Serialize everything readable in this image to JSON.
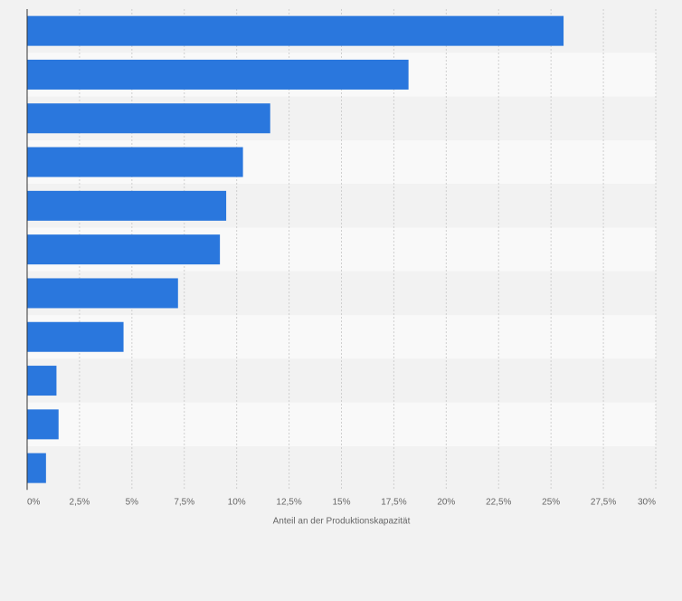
{
  "chart_data": {
    "type": "bar",
    "orientation": "horizontal",
    "categories": [
      "",
      "",
      "",
      "",
      "",
      "",
      "",
      "",
      "",
      "",
      ""
    ],
    "values": [
      25.6,
      18.2,
      11.6,
      10.3,
      9.5,
      9.2,
      7.2,
      4.6,
      1.4,
      1.5,
      0.9
    ],
    "xlabel": "Anteil an der Produktionskapazität",
    "xlim": [
      0,
      30
    ],
    "ticks": [
      0,
      2.5,
      5,
      7.5,
      10,
      12.5,
      15,
      17.5,
      20,
      22.5,
      25,
      27.5,
      30
    ],
    "tick_labels": [
      "0%",
      "2,5%",
      "5%",
      "7,5%",
      "10%",
      "12,5%",
      "15%",
      "17,5%",
      "20%",
      "22,5%",
      "25%",
      "27,5%",
      "30%"
    ],
    "grid": true,
    "legend": "none",
    "colors": {
      "bar": "#2a77dd",
      "band_odd": "#f2f2f2",
      "band_even": "#f9f9f9",
      "grid": "#cfcfcf",
      "axis": "#333333",
      "tick_text": "#666666",
      "background": "#f2f2f2"
    }
  }
}
